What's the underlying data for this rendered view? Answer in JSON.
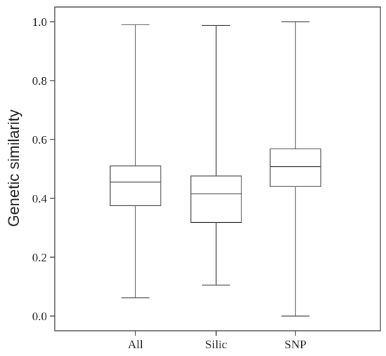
{
  "chart_data": {
    "type": "box",
    "title": "",
    "xlabel": "",
    "ylabel": "Genetic similarity",
    "ylim": [
      -0.05,
      1.04
    ],
    "yticks": [
      "0.0",
      "0.2",
      "0.4",
      "0.6",
      "0.8",
      "1.0"
    ],
    "categories": [
      "All",
      "Silic",
      "SNP"
    ],
    "boxes": [
      {
        "category": "All",
        "min": 0.062,
        "q1": 0.375,
        "median": 0.455,
        "q3": 0.51,
        "max": 0.99
      },
      {
        "category": "Silic",
        "min": 0.105,
        "q1": 0.318,
        "median": 0.415,
        "q3": 0.476,
        "max": 0.987
      },
      {
        "category": "SNP",
        "min": 0.0,
        "q1": 0.44,
        "median": 0.508,
        "q3": 0.568,
        "max": 1.0
      }
    ],
    "grid": false,
    "legend": "none",
    "colors": {
      "line": "#555555",
      "frame": "#333333"
    }
  }
}
